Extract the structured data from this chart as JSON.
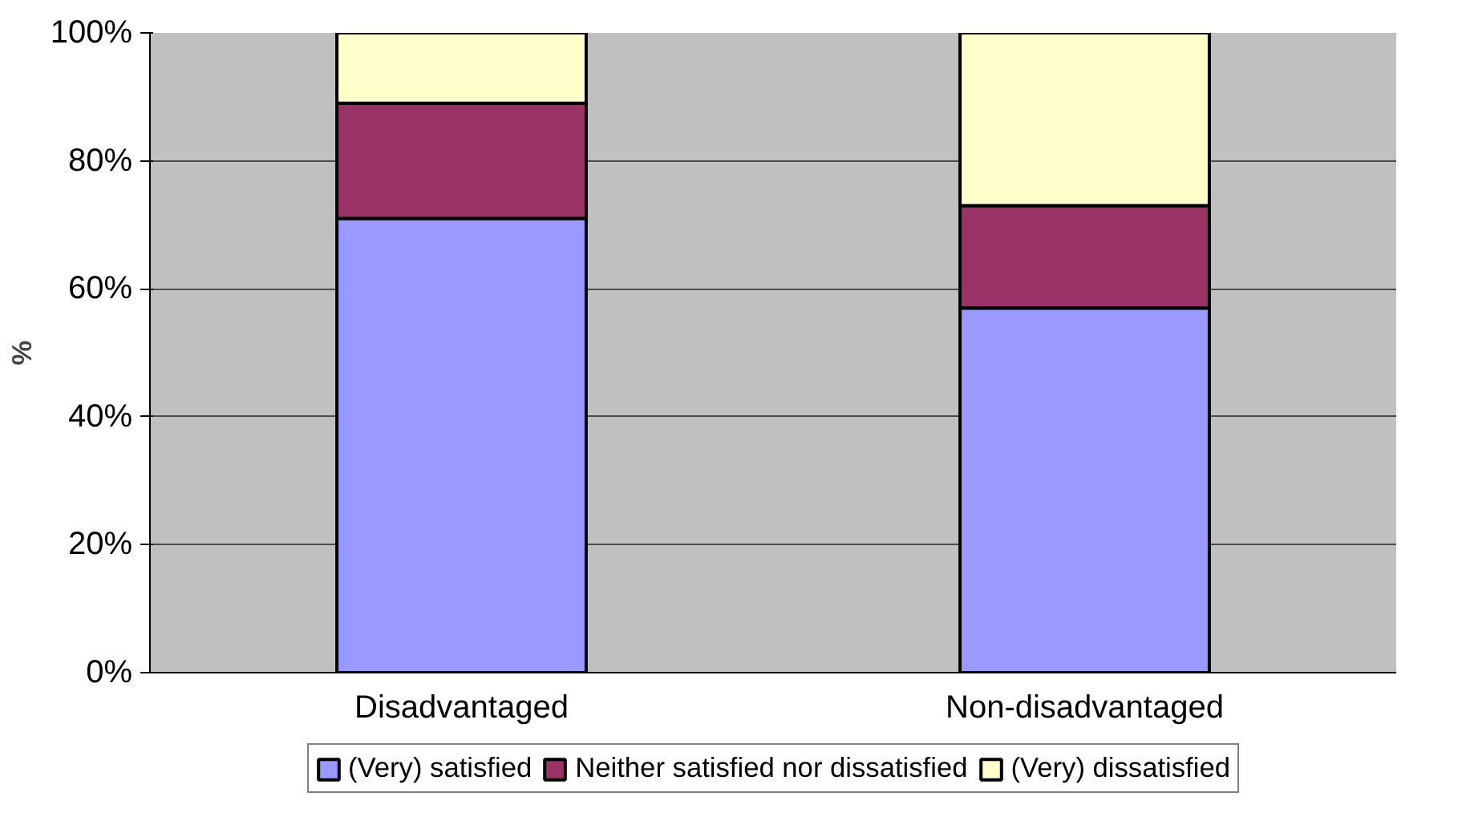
{
  "chart_data": {
    "type": "bar",
    "stacked": true,
    "ylabel": "%",
    "categories": [
      "Disadvantaged",
      "Non-disadvantaged"
    ],
    "series": [
      {
        "name": "(Very) satisfied",
        "color": "#9999ff",
        "values": [
          71,
          57
        ]
      },
      {
        "name": "Neither satisfied nor dissatisfied",
        "color": "#993366",
        "values": [
          18,
          16
        ]
      },
      {
        "name": "(Very) dissatisfied",
        "color": "#ffffcc",
        "values": [
          11,
          27
        ]
      }
    ],
    "ylim": [
      0,
      100
    ],
    "yticks": [
      {
        "value": 0,
        "label": "0%"
      },
      {
        "value": 20,
        "label": "20%"
      },
      {
        "value": 40,
        "label": "40%"
      },
      {
        "value": 60,
        "label": "60%"
      },
      {
        "value": 80,
        "label": "80%"
      },
      {
        "value": 100,
        "label": "100%"
      }
    ],
    "grid": "y",
    "legend": "bottom"
  }
}
